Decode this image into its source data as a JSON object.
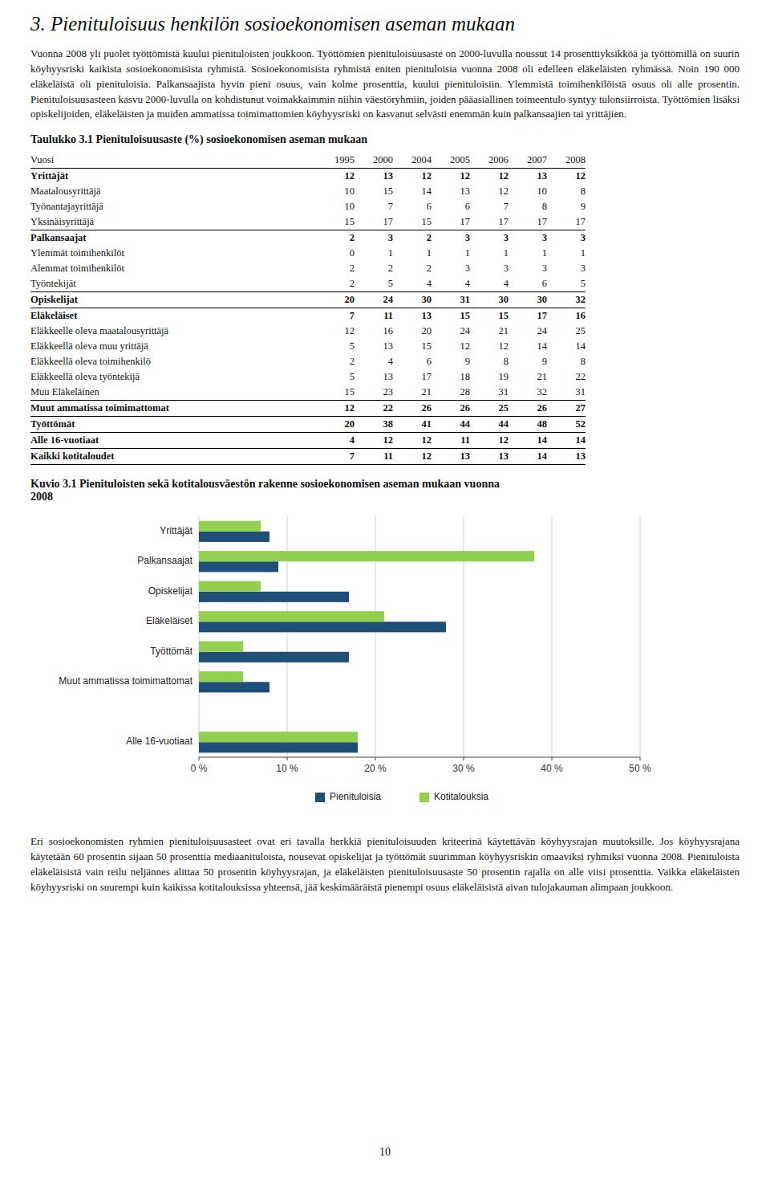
{
  "heading": "3. Pienituloisuus henkilön sosioekonomisen aseman mukaan",
  "paragraphs": [
    "Vuonna 2008 yli puolet työttömistä kuului pienituloisten joukkoon. Työttömien pienituloisuusaste on 2000-luvulla noussut 14 prosenttiyksikköä ja työttömillä on suurin köyhyysriski kaikista sosioekonomisista ryhmistä. Sosioekonomisista ryhmistä eniten pienituloisia vuonna 2008 oli edelleen eläkeläisten ryhmässä. Noin 190 000 eläkeläistä oli pienituloisia. Palkansaajista hyvin pieni osuus, vain kolme prosenttia, kuului pienituloisiin. Ylemmistä toimihenkilöistä osuus oli alle prosentin. Pienituloisuusasteen kasvu 2000-luvulla on kohdistunut voimakkaimmin niihin väestöryhmiin, joiden pääasiallinen toimeentulo syntyy tulonsiirroista. Työttömien lisäksi opiskelijoiden, eläkeläisten ja muiden ammatissa toimimattomien köyhyysriski on kasvanut selvästi enemmän kuin palkansaajien tai yrittäjien.",
    "Eri sosioekonomisten ryhmien pienituloisuusasteet ovat eri tavalla herkkiä pienituloisuuden kriteerinä käytettävän köyhyysrajan muutoksille. Jos köyhyysrajana käytetään 60 prosentin sijaan 50 prosenttia mediaanituloista, nousevat opiskelijat ja työttömät suurimman köyhyysriskin omaaviksi ryhmiksi vuonna 2008. Pienituloista eläkeläisistä vain reilu neljännes alittaa 50 prosentin köyhyysrajan, ja eläkeläisten pienituloisuusaste 50 prosentin rajalla on alle viisi prosenttia. Vaikka eläkeläisten köyhyysriski on suurempi kuin kaikissa kotitalouksissa yhteensä, jää keskimääräistä pienempi osuus eläkeläisistä aivan tulojakauman alimpaan joukkoon."
  ],
  "table": {
    "title": "Taulukko 3.1 Pienituloisuusaste (%) sosioekonomisen aseman mukaan",
    "columns": [
      "Vuosi",
      "1995",
      "2000",
      "2004",
      "2005",
      "2006",
      "2007",
      "2008"
    ],
    "rows": [
      {
        "label": "Yrittäjät",
        "values": [
          12,
          13,
          12,
          12,
          12,
          13,
          12
        ],
        "bold": true
      },
      {
        "label": "Maatalousyrittäjä",
        "values": [
          10,
          15,
          14,
          13,
          12,
          10,
          8
        ],
        "bold": false
      },
      {
        "label": "Työnantajayrittäjä",
        "values": [
          10,
          7,
          6,
          6,
          7,
          8,
          9
        ],
        "bold": false
      },
      {
        "label": "Yksinäisyrittäjä",
        "values": [
          15,
          17,
          15,
          17,
          17,
          17,
          17
        ],
        "bold": false
      },
      {
        "label": "Palkansaajat",
        "values": [
          2,
          3,
          2,
          3,
          3,
          3,
          3
        ],
        "bold": true
      },
      {
        "label": "Ylemmät toimihenkilöt",
        "values": [
          0,
          1,
          1,
          1,
          1,
          1,
          1
        ],
        "bold": false
      },
      {
        "label": "Alemmat toimihenkilöt",
        "values": [
          2,
          2,
          2,
          3,
          3,
          3,
          3
        ],
        "bold": false
      },
      {
        "label": "Työntekijät",
        "values": [
          2,
          5,
          4,
          4,
          4,
          6,
          5
        ],
        "bold": false
      },
      {
        "label": "Opiskelijat",
        "values": [
          20,
          24,
          30,
          31,
          30,
          30,
          32
        ],
        "bold": true
      },
      {
        "label": "Eläkeläiset",
        "values": [
          7,
          11,
          13,
          15,
          15,
          17,
          16
        ],
        "bold": true
      },
      {
        "label": "Eläkkeelle oleva maatalousyrittäjä",
        "values": [
          12,
          16,
          20,
          24,
          21,
          24,
          25
        ],
        "bold": false
      },
      {
        "label": "Eläkkeellä oleva muu yrittäjä",
        "values": [
          5,
          13,
          15,
          12,
          12,
          14,
          14
        ],
        "bold": false
      },
      {
        "label": "Eläkkeellä oleva toimihenkilö",
        "values": [
          2,
          4,
          6,
          9,
          8,
          9,
          8
        ],
        "bold": false
      },
      {
        "label": "Eläkkeellä oleva työntekijä",
        "values": [
          5,
          13,
          17,
          18,
          19,
          21,
          22
        ],
        "bold": false
      },
      {
        "label": "Muu Eläkeläinen",
        "values": [
          15,
          23,
          21,
          28,
          31,
          32,
          31
        ],
        "bold": false
      },
      {
        "label": "Muut ammatissa toimimattomat",
        "values": [
          12,
          22,
          26,
          26,
          25,
          26,
          27
        ],
        "bold": true
      },
      {
        "label": "Työttömät",
        "values": [
          20,
          38,
          41,
          44,
          44,
          48,
          52
        ],
        "bold": true
      },
      {
        "label": "Alle 16-vuotiaat",
        "values": [
          4,
          12,
          12,
          11,
          12,
          14,
          14
        ],
        "bold": true
      },
      {
        "label": "Kaikki kotitaloudet",
        "values": [
          7,
          11,
          12,
          13,
          13,
          14,
          13
        ],
        "bold": true
      }
    ]
  },
  "chart_data": {
    "type": "bar",
    "orientation": "horizontal",
    "title": "Kuvio 3.1 Pienituloisten sekä kotitalousväestön rakenne sosioekonomisen aseman mukaan vuonna\n2008",
    "categories": [
      "Yrittäjät",
      "Palkansaajat",
      "Opiskelijat",
      "Eläkeläiset",
      "Työttömät",
      "Muut ammatissa toimimattomat",
      null,
      "Alle 16-vuotiaat"
    ],
    "series": [
      {
        "name": "Pienituloisia",
        "color": "#1F4E79",
        "values": [
          8,
          9,
          17,
          28,
          17,
          8,
          0,
          18
        ]
      },
      {
        "name": "Kotitalouksia",
        "color": "#92D050",
        "values": [
          7,
          38,
          7,
          21,
          5,
          5,
          0,
          18
        ]
      }
    ],
    "xlim": [
      0,
      50
    ],
    "xticks": [
      {
        "value": 0,
        "label": "0 %"
      },
      {
        "value": 10,
        "label": "10 %"
      },
      {
        "value": 20,
        "label": "20 %"
      },
      {
        "value": 30,
        "label": "30 %"
      },
      {
        "value": 40,
        "label": "40 %"
      },
      {
        "value": 50,
        "label": "50 %"
      }
    ],
    "grid": true,
    "legend": "bottom"
  },
  "page_number": "10"
}
